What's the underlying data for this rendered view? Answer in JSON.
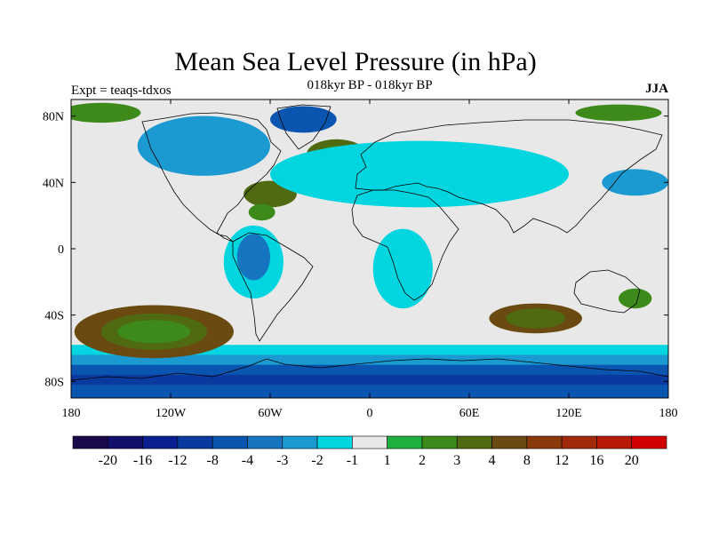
{
  "title": "Mean Sea Level Pressure (in hPa)",
  "subtitle": "018kyr BP - 018kyr BP",
  "experiment": "Expt = teaqs-tdxos",
  "season": "JJA",
  "map": {
    "projection": "equirectangular",
    "lon_range": [
      -180,
      180
    ],
    "lat_range": [
      -90,
      90
    ],
    "background_color": "#e8e8e8",
    "x_ticks": [
      {
        "lon": -180,
        "label": "180"
      },
      {
        "lon": -120,
        "label": "120W"
      },
      {
        "lon": -60,
        "label": "60W"
      },
      {
        "lon": 0,
        "label": "0"
      },
      {
        "lon": 60,
        "label": "60E"
      },
      {
        "lon": 120,
        "label": "120E"
      },
      {
        "lon": 180,
        "label": "180"
      }
    ],
    "y_ticks": [
      {
        "lat": 80,
        "label": "80N"
      },
      {
        "lat": 40,
        "label": "40N"
      },
      {
        "lat": 0,
        "label": "0"
      },
      {
        "lat": -40,
        "label": "40S"
      },
      {
        "lat": -80,
        "label": "80S"
      }
    ]
  },
  "colorbar": {
    "colors": [
      "#1a0a4a",
      "#10106a",
      "#0a2090",
      "#0a3aa0",
      "#0a55b0",
      "#1575c0",
      "#1a9ad0",
      "#00d5e0",
      "#e8e8e8",
      "#1fb040",
      "#3d8a1a",
      "#4f6a10",
      "#6a4a10",
      "#8a3a0a",
      "#a02a0a",
      "#b81a05",
      "#d00000"
    ],
    "labels": [
      "-20",
      "-16",
      "-12",
      "-8",
      "-4",
      "-3",
      "-2",
      "-1",
      "1",
      "2",
      "3",
      "4",
      "8",
      "12",
      "16",
      "20"
    ]
  },
  "chart_data": {
    "type": "heatmap",
    "title": "Mean Sea Level Pressure (in hPa)",
    "subtitle": "018kyr BP - 018kyr BP",
    "units": "hPa",
    "x_range": [
      -180,
      180
    ],
    "y_range": [
      -90,
      90
    ],
    "levels": [
      -20,
      -16,
      -12,
      -8,
      -4,
      -3,
      -2,
      -1,
      1,
      2,
      3,
      4,
      8,
      12,
      16,
      20
    ],
    "features": [
      {
        "lon": -130,
        "lat": -50,
        "lon_radius": 48,
        "lat_radius": 16,
        "level": 4
      },
      {
        "lon": -130,
        "lat": -50,
        "lon_radius": 32,
        "lat_radius": 11,
        "level": 3
      },
      {
        "lon": -130,
        "lat": -50,
        "lon_radius": 22,
        "lat_radius": 7,
        "level": 2
      },
      {
        "lon": 100,
        "lat": -42,
        "lon_radius": 28,
        "lat_radius": 9,
        "level": 4
      },
      {
        "lon": 100,
        "lat": -42,
        "lon_radius": 18,
        "lat_radius": 6,
        "level": 3
      },
      {
        "lon": 160,
        "lat": -30,
        "lon_radius": 10,
        "lat_radius": 6,
        "level": 2
      },
      {
        "lon": -20,
        "lat": 57,
        "lon_radius": 18,
        "lat_radius": 9,
        "level": 3
      },
      {
        "lon": -20,
        "lat": 57,
        "lon_radius": 11,
        "lat_radius": 5,
        "level": 2
      },
      {
        "lon": -60,
        "lat": 33,
        "lon_radius": 16,
        "lat_radius": 8,
        "level": 3
      },
      {
        "lon": -65,
        "lat": 22,
        "lon_radius": 8,
        "lat_radius": 5,
        "level": 2
      },
      {
        "lon": -162,
        "lat": 82,
        "lon_radius": 24,
        "lat_radius": 6,
        "level": 2
      },
      {
        "lon": 150,
        "lat": 82,
        "lon_radius": 26,
        "lat_radius": 5,
        "level": 2
      },
      {
        "lon": -70,
        "lat": -8,
        "lon_radius": 18,
        "lat_radius": 22,
        "level": -1
      },
      {
        "lon": -70,
        "lat": -5,
        "lon_radius": 10,
        "lat_radius": 14,
        "level": -3
      },
      {
        "lon": 20,
        "lat": -12,
        "lon_radius": 18,
        "lat_radius": 24,
        "level": -1
      },
      {
        "lon": 30,
        "lat": 45,
        "lon_radius": 90,
        "lat_radius": 20,
        "level": -1
      },
      {
        "lon": -100,
        "lat": 62,
        "lon_radius": 40,
        "lat_radius": 18,
        "level": -2
      },
      {
        "lon": -40,
        "lat": 78,
        "lon_radius": 20,
        "lat_radius": 8,
        "level": -4
      },
      {
        "lon": 160,
        "lat": 40,
        "lon_radius": 20,
        "lat_radius": 8,
        "level": -2
      }
    ],
    "bands": [
      {
        "lat_from": -58,
        "lat_to": -90,
        "level": -1
      },
      {
        "lat_from": -64,
        "lat_to": -90,
        "level": -2
      },
      {
        "lat_from": -70,
        "lat_to": -90,
        "level": -4
      },
      {
        "lat_from": -76,
        "lat_to": -82,
        "level": -8
      }
    ]
  }
}
